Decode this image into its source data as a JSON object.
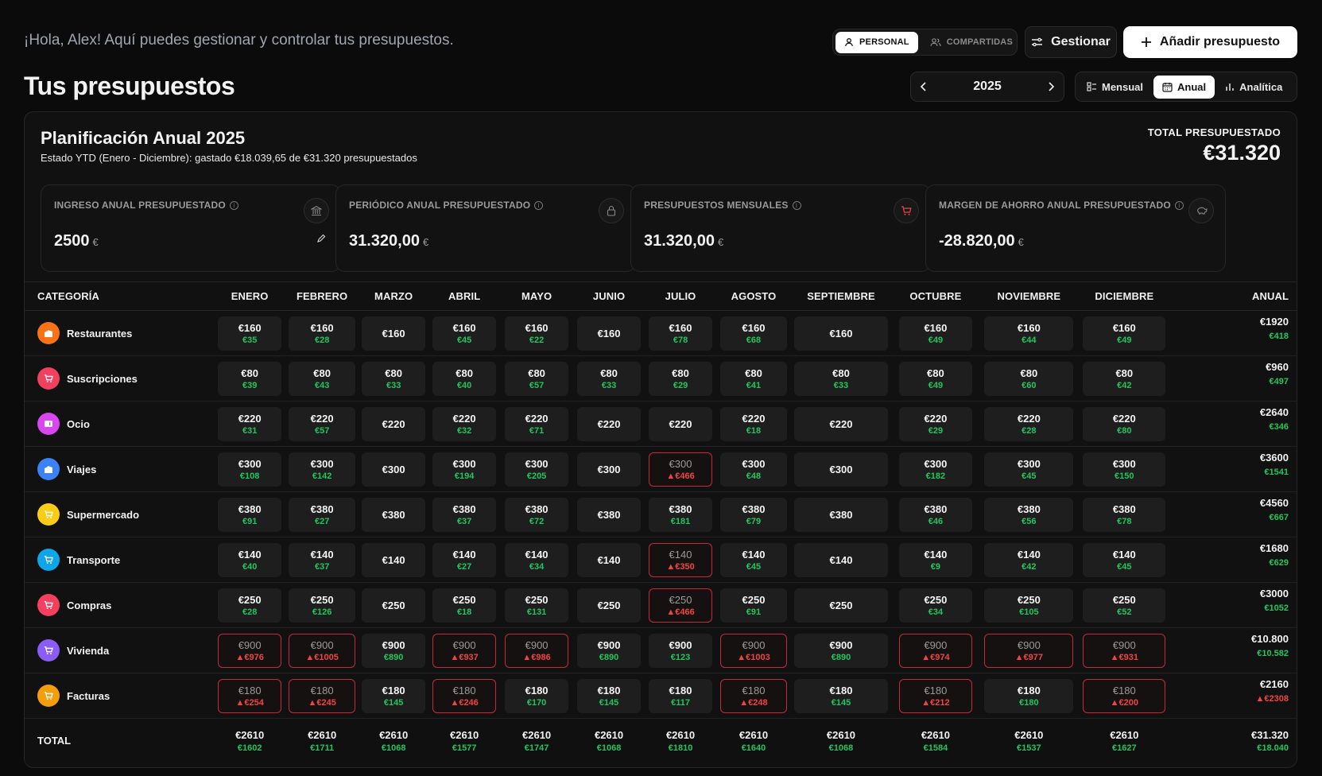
{
  "header": {
    "greeting": "¡Hola, Alex! Aquí puedes gestionar y controlar tus presupuestos.",
    "scope_personal": "PERSONAL",
    "scope_shared": "COMPARTIDAS",
    "manage_label": "Gestionar",
    "add_label": "Añadir presupuesto"
  },
  "page_title": "Tus presupuestos",
  "year_nav": {
    "year": "2025"
  },
  "views": {
    "monthly": "Mensual",
    "annual": "Anual",
    "analytics": "Analítica"
  },
  "plan": {
    "title": "Planificación Anual 2025",
    "subtitle": "Estado YTD (Enero - Diciembre): gastado €18.039,65 de €31.320 presupuestados",
    "total_label": "TOTAL PRESUPUESTADO",
    "total_value": "€31.320"
  },
  "stats": [
    {
      "label": "INGRESO ANUAL PRESUPUESTADO",
      "value": "2500",
      "unit": "€",
      "icon": "bank-icon"
    },
    {
      "label": "PERIÓDICO ANUAL PRESUPUESTADO",
      "value": "31.320,00",
      "unit": "€",
      "icon": "lock-icon"
    },
    {
      "label": "PRESUPUESTOS MENSUALES",
      "value": "31.320,00",
      "unit": "€",
      "icon": "cart-icon"
    },
    {
      "label": "MARGEN DE AHORRO ANUAL PRESUPUESTADO",
      "value": "-28.820,00",
      "unit": "€",
      "icon": "piggy-bank-icon"
    }
  ],
  "table": {
    "headers": [
      "CATEGORÍA",
      "ENERO",
      "FEBRERO",
      "MARZO",
      "ABRIL",
      "MAYO",
      "JUNIO",
      "JULIO",
      "AGOSTO",
      "SEPTIEMBRE",
      "OCTUBRE",
      "NOVIEMBRE",
      "DICIEMBRE",
      "ANUAL"
    ],
    "rows": [
      {
        "name": "Restaurantes",
        "color": "#f97316",
        "icon": "building-icon",
        "cells": [
          [
            "€160",
            "€35",
            0
          ],
          [
            "€160",
            "€28",
            0
          ],
          [
            "€160",
            "",
            0
          ],
          [
            "€160",
            "€45",
            0
          ],
          [
            "€160",
            "€22",
            0
          ],
          [
            "€160",
            "",
            0
          ],
          [
            "€160",
            "€78",
            0
          ],
          [
            "€160",
            "€68",
            0
          ],
          [
            "€160",
            "",
            0
          ],
          [
            "€160",
            "€49",
            0
          ],
          [
            "€160",
            "€44",
            0
          ],
          [
            "€160",
            "€49",
            0
          ]
        ],
        "annual": [
          "€1920",
          "€418",
          0
        ]
      },
      {
        "name": "Suscripciones",
        "color": "#f43f5e",
        "icon": "cart-icon",
        "cells": [
          [
            "€80",
            "€39",
            0
          ],
          [
            "€80",
            "€43",
            0
          ],
          [
            "€80",
            "€33",
            0
          ],
          [
            "€80",
            "€40",
            0
          ],
          [
            "€80",
            "€57",
            0
          ],
          [
            "€80",
            "€33",
            0
          ],
          [
            "€80",
            "€29",
            0
          ],
          [
            "€80",
            "€41",
            0
          ],
          [
            "€80",
            "€33",
            0
          ],
          [
            "€80",
            "€49",
            0
          ],
          [
            "€80",
            "€60",
            0
          ],
          [
            "€80",
            "€42",
            0
          ]
        ],
        "annual": [
          "€960",
          "€497",
          0
        ]
      },
      {
        "name": "Ocio",
        "color": "#d946ef",
        "icon": "ticket-icon",
        "cells": [
          [
            "€220",
            "€31",
            0
          ],
          [
            "€220",
            "€57",
            0
          ],
          [
            "€220",
            "",
            0
          ],
          [
            "€220",
            "€32",
            0
          ],
          [
            "€220",
            "€71",
            0
          ],
          [
            "€220",
            "",
            0
          ],
          [
            "€220",
            "",
            0
          ],
          [
            "€220",
            "€18",
            0
          ],
          [
            "€220",
            "",
            0
          ],
          [
            "€220",
            "€29",
            0
          ],
          [
            "€220",
            "€28",
            0
          ],
          [
            "€220",
            "€80",
            0
          ]
        ],
        "annual": [
          "€2640",
          "€346",
          0
        ]
      },
      {
        "name": "Viajes",
        "color": "#3b82f6",
        "icon": "building-icon",
        "cells": [
          [
            "€300",
            "€108",
            0
          ],
          [
            "€300",
            "€142",
            0
          ],
          [
            "€300",
            "",
            0
          ],
          [
            "€300",
            "€194",
            0
          ],
          [
            "€300",
            "€205",
            0
          ],
          [
            "€300",
            "",
            0
          ],
          [
            "€300",
            "▲€466",
            1
          ],
          [
            "€300",
            "€48",
            0
          ],
          [
            "€300",
            "",
            0
          ],
          [
            "€300",
            "€182",
            0
          ],
          [
            "€300",
            "€45",
            0
          ],
          [
            "€300",
            "€150",
            0
          ]
        ],
        "annual": [
          "€3600",
          "€1541",
          0
        ]
      },
      {
        "name": "Supermercado",
        "color": "#facc15",
        "icon": "cart-icon",
        "cells": [
          [
            "€380",
            "€91",
            0
          ],
          [
            "€380",
            "€27",
            0
          ],
          [
            "€380",
            "",
            0
          ],
          [
            "€380",
            "€37",
            0
          ],
          [
            "€380",
            "€72",
            0
          ],
          [
            "€380",
            "",
            0
          ],
          [
            "€380",
            "€181",
            0
          ],
          [
            "€380",
            "€79",
            0
          ],
          [
            "€380",
            "",
            0
          ],
          [
            "€380",
            "€46",
            0
          ],
          [
            "€380",
            "€56",
            0
          ],
          [
            "€380",
            "€78",
            0
          ]
        ],
        "annual": [
          "€4560",
          "€667",
          0
        ]
      },
      {
        "name": "Transporte",
        "color": "#0ea5e9",
        "icon": "cart-icon",
        "cells": [
          [
            "€140",
            "€40",
            0
          ],
          [
            "€140",
            "€37",
            0
          ],
          [
            "€140",
            "",
            0
          ],
          [
            "€140",
            "€27",
            0
          ],
          [
            "€140",
            "€34",
            0
          ],
          [
            "€140",
            "",
            0
          ],
          [
            "€140",
            "▲€350",
            1
          ],
          [
            "€140",
            "€45",
            0
          ],
          [
            "€140",
            "",
            0
          ],
          [
            "€140",
            "€9",
            0
          ],
          [
            "€140",
            "€42",
            0
          ],
          [
            "€140",
            "€45",
            0
          ]
        ],
        "annual": [
          "€1680",
          "€629",
          0
        ]
      },
      {
        "name": "Compras",
        "color": "#f43f5e",
        "icon": "cart-icon",
        "cells": [
          [
            "€250",
            "€28",
            0
          ],
          [
            "€250",
            "€126",
            0
          ],
          [
            "€250",
            "",
            0
          ],
          [
            "€250",
            "€18",
            0
          ],
          [
            "€250",
            "€131",
            0
          ],
          [
            "€250",
            "",
            0
          ],
          [
            "€250",
            "▲€466",
            1
          ],
          [
            "€250",
            "€91",
            0
          ],
          [
            "€250",
            "",
            0
          ],
          [
            "€250",
            "€34",
            0
          ],
          [
            "€250",
            "€105",
            0
          ],
          [
            "€250",
            "€52",
            0
          ]
        ],
        "annual": [
          "€3000",
          "€1052",
          0
        ]
      },
      {
        "name": "Vivienda",
        "color": "#8b5cf6",
        "icon": "cart-icon",
        "cells": [
          [
            "€900",
            "▲€976",
            1
          ],
          [
            "€900",
            "▲€1005",
            1
          ],
          [
            "€900",
            "€890",
            0
          ],
          [
            "€900",
            "▲€937",
            1
          ],
          [
            "€900",
            "▲€986",
            1
          ],
          [
            "€900",
            "€890",
            0
          ],
          [
            "€900",
            "€123",
            0
          ],
          [
            "€900",
            "▲€1003",
            1
          ],
          [
            "€900",
            "€890",
            0
          ],
          [
            "€900",
            "▲€974",
            1
          ],
          [
            "€900",
            "▲€977",
            1
          ],
          [
            "€900",
            "▲€931",
            1
          ]
        ],
        "annual": [
          "€10.800",
          "€10.582",
          0
        ]
      },
      {
        "name": "Facturas",
        "color": "#f59e0b",
        "icon": "cart-icon",
        "cells": [
          [
            "€180",
            "▲€254",
            1
          ],
          [
            "€180",
            "▲€245",
            1
          ],
          [
            "€180",
            "€145",
            0
          ],
          [
            "€180",
            "▲€246",
            1
          ],
          [
            "€180",
            "€170",
            0
          ],
          [
            "€180",
            "€145",
            0
          ],
          [
            "€180",
            "€117",
            0
          ],
          [
            "€180",
            "▲€248",
            1
          ],
          [
            "€180",
            "€145",
            0
          ],
          [
            "€180",
            "▲€212",
            1
          ],
          [
            "€180",
            "€180",
            0
          ],
          [
            "€180",
            "▲€200",
            1
          ]
        ],
        "annual": [
          "€2160",
          "▲€2308",
          1
        ]
      }
    ],
    "total": {
      "label": "TOTAL",
      "cells": [
        [
          "€2610",
          "€1602"
        ],
        [
          "€2610",
          "€1711"
        ],
        [
          "€2610",
          "€1068"
        ],
        [
          "€2610",
          "€1577"
        ],
        [
          "€2610",
          "€1747"
        ],
        [
          "€2610",
          "€1068"
        ],
        [
          "€2610",
          "€1810"
        ],
        [
          "€2610",
          "€1640"
        ],
        [
          "€2610",
          "€1068"
        ],
        [
          "€2610",
          "€1584"
        ],
        [
          "€2610",
          "€1537"
        ],
        [
          "€2610",
          "€1627"
        ]
      ],
      "annual": [
        "€31.320",
        "€18.040"
      ]
    }
  }
}
